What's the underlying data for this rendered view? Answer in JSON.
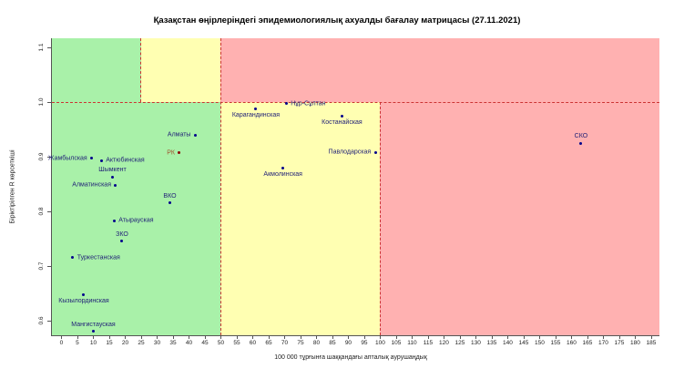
{
  "title": "Қазақстан өңірлеріндегі эпидемиологиялық ахуалды бағалау матрицасы (27.11.2021)",
  "chart_data": {
    "type": "scatter",
    "title": "Қазақстан өңірлеріндегі эпидемиологиялық ахуалды бағалау матрицасы (27.11.2021)",
    "xlabel": "100 000 тұрғынға шаққандағы апталық аурушаңдық",
    "ylabel": "Біріктірілген R көрсеткіші",
    "xlim": [
      -3,
      187.6
    ],
    "ylim": [
      0.5733,
      1.1167
    ],
    "x_ticks": {
      "min": 0,
      "max": 185,
      "step": 5
    },
    "y_ticks": {
      "min": 0.6,
      "max": 1.1,
      "step": 0.1
    },
    "grid": false,
    "legend": "none",
    "zone_colors": {
      "green": "#a9f1a9",
      "yellow": "#ffffb2",
      "red": "#ffb1b1"
    },
    "threshold_line_color": "#cc3333",
    "axis_color": "#555555",
    "point_color": "#00008b",
    "point_label_color": "#222278",
    "thresholds": {
      "x": [
        25,
        50,
        100
      ],
      "y": 1.0
    },
    "zones": [
      {
        "color": "green",
        "x0": "xmin",
        "x1": 25,
        "y0": 1.0,
        "y1": "ymax"
      },
      {
        "color": "yellow",
        "x0": 25,
        "x1": 50,
        "y0": 1.0,
        "y1": "ymax"
      },
      {
        "color": "red",
        "x0": 50,
        "x1": "xmax",
        "y0": 1.0,
        "y1": "ymax"
      },
      {
        "color": "green",
        "x0": "xmin",
        "x1": 50,
        "y0": "ymin",
        "y1": 1.0
      },
      {
        "color": "yellow",
        "x0": 50,
        "x1": 100,
        "y0": "ymin",
        "y1": 1.0
      },
      {
        "color": "red",
        "x0": 100,
        "x1": "xmax",
        "y0": "ymin",
        "y1": 1.0
      }
    ],
    "threshold_lines": [
      {
        "type": "h",
        "y": 1.0,
        "x0": "xmin",
        "x1": "xmax"
      },
      {
        "type": "v",
        "x": 25,
        "y0": 1.0,
        "y1": "ymax"
      },
      {
        "type": "v",
        "x": 50,
        "y0": "ymin",
        "y1": "ymax"
      },
      {
        "type": "v",
        "x": 100,
        "y0": "ymin",
        "y1": 1.0
      }
    ],
    "points": [
      {
        "name": "Нұр-Сұлтан",
        "x": 70.5,
        "y": 0.997,
        "label_side": "right"
      },
      {
        "name": "Карагандинская",
        "x": 61,
        "y": 0.988,
        "label_side": "below"
      },
      {
        "name": "Костанайская",
        "x": 88,
        "y": 0.975,
        "label_side": "below"
      },
      {
        "name": "Алматы",
        "x": 42,
        "y": 0.94,
        "label_side": "left"
      },
      {
        "name": "СКО",
        "x": 163,
        "y": 0.925,
        "label_side": "above"
      },
      {
        "name": "Павлодарская",
        "x": 98.5,
        "y": 0.908,
        "label_side": "left"
      },
      {
        "name": "РК",
        "x": 37,
        "y": 0.907,
        "label_side": "left",
        "color": "#8b0000",
        "label_color": "#a0522d"
      },
      {
        "name": "Жамбылская",
        "x": 9.5,
        "y": 0.897,
        "label_side": "left"
      },
      {
        "name": "Актюбинская",
        "x": 12.5,
        "y": 0.893,
        "label_side": "right"
      },
      {
        "name": "Акмолинская",
        "x": 69.5,
        "y": 0.88,
        "label_side": "below"
      },
      {
        "name": "Шымкент",
        "x": 16,
        "y": 0.863,
        "label_side": "above"
      },
      {
        "name": "Алматинская",
        "x": 17,
        "y": 0.848,
        "label_side": "left"
      },
      {
        "name": "ВКО",
        "x": 34,
        "y": 0.815,
        "label_side": "above"
      },
      {
        "name": "Атырауская",
        "x": 16.5,
        "y": 0.783,
        "label_side": "right"
      },
      {
        "name": "ЗКО",
        "x": 19,
        "y": 0.745,
        "label_side": "above"
      },
      {
        "name": "Туркестанская",
        "x": 3.5,
        "y": 0.715,
        "label_side": "right"
      },
      {
        "name": "Кызылординская",
        "x": 7,
        "y": 0.648,
        "label_side": "below"
      },
      {
        "name": "Мангистауская",
        "x": 10,
        "y": 0.58,
        "label_side": "above"
      }
    ]
  }
}
